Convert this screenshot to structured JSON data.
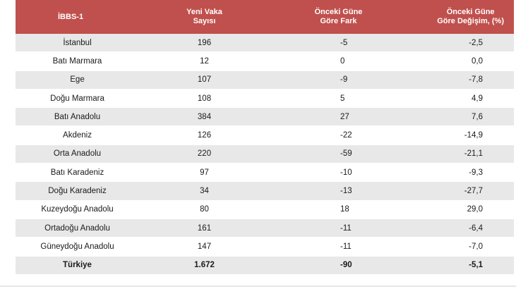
{
  "header": {
    "col1": "İBBS-1",
    "col2_line1": "Yeni Vaka",
    "col2_line2": "Sayısı",
    "col3_line1": "Önceki Güne",
    "col3_line2": "Göre Fark",
    "col4_line1": "Önceki Güne",
    "col4_line2": "Göre Değişim, (%)"
  },
  "rows": [
    {
      "region": "İstanbul",
      "cases": "196",
      "diff": "-5",
      "change": "-2,5"
    },
    {
      "region": "Batı Marmara",
      "cases": "12",
      "diff": "0",
      "change": "0,0"
    },
    {
      "region": "Ege",
      "cases": "107",
      "diff": "-9",
      "change": "-7,8"
    },
    {
      "region": "Doğu Marmara",
      "cases": "108",
      "diff": "5",
      "change": "4,9"
    },
    {
      "region": "Batı Anadolu",
      "cases": "384",
      "diff": "27",
      "change": "7,6"
    },
    {
      "region": "Akdeniz",
      "cases": "126",
      "diff": "-22",
      "change": "-14,9"
    },
    {
      "region": "Orta Anadolu",
      "cases": "220",
      "diff": "-59",
      "change": "-21,1"
    },
    {
      "region": "Batı Karadeniz",
      "cases": "97",
      "diff": "-10",
      "change": "-9,3"
    },
    {
      "region": "Doğu Karadeniz",
      "cases": "34",
      "diff": "-13",
      "change": "-27,7"
    },
    {
      "region": "Kuzeydoğu Anadolu",
      "cases": "80",
      "diff": "18",
      "change": "29,0"
    },
    {
      "region": "Ortadoğu Anadolu",
      "cases": "161",
      "diff": "-11",
      "change": "-6,4"
    },
    {
      "region": "Güneydoğu Anadolu",
      "cases": "147",
      "diff": "-11",
      "change": "-7,0"
    },
    {
      "region": "Türkiye",
      "cases": "1.672",
      "diff": "-90",
      "change": "-5,1"
    }
  ],
  "colors": {
    "header_bg": "#c0504d",
    "stripe_bg": "#e8e8e8"
  }
}
